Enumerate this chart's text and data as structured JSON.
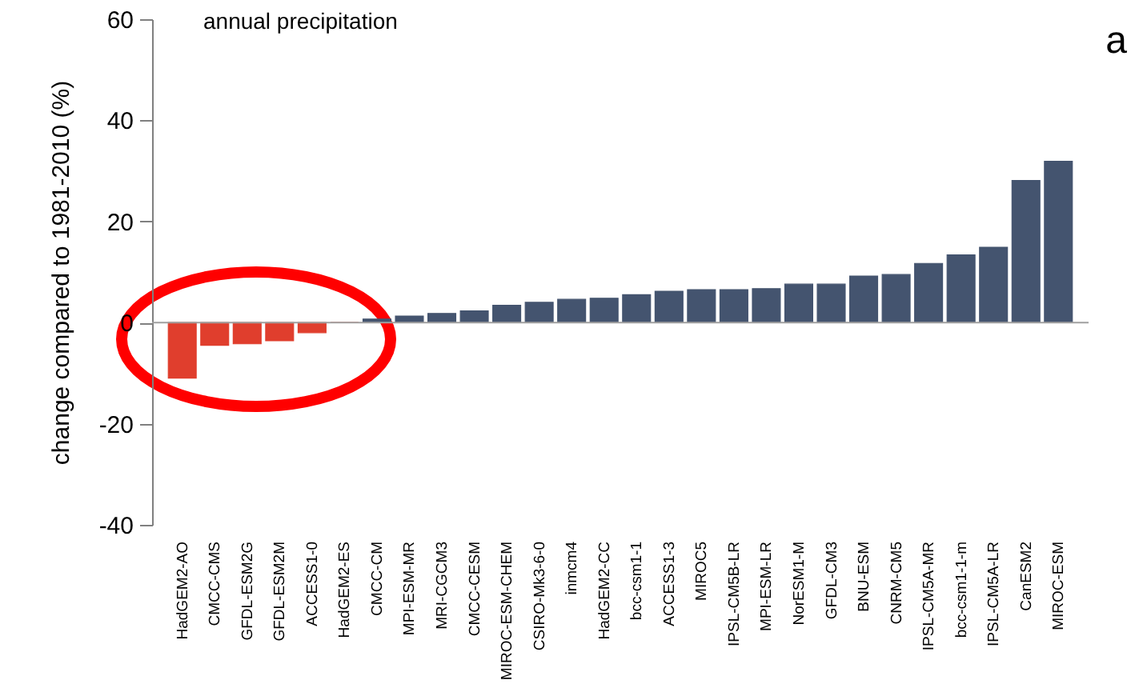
{
  "chart_data": {
    "type": "bar",
    "title": "annual precipitation",
    "ylabel": "change compared to 1981-2010 (%)",
    "annotations": [
      "a"
    ],
    "categories": [
      "HadGEM2-AO",
      "CMCC-CMS",
      "GFDL-ESM2G",
      "GFDL-ESM2M",
      "ACCESS1-0",
      "HadGEM2-ES",
      "CMCC-CM",
      "MPI-ESM-MR",
      "MRI-CGCM3",
      "CMCC-CESM",
      "MIROC-ESM-CHEM",
      "CSIRO-Mk3-6-0",
      "inmcm4",
      "HadGEM2-CC",
      "bcc-csm1-1",
      "ACCESS1-3",
      "MIROC5",
      "IPSL-CM5B-LR",
      "MPI-ESM-LR",
      "NorESM1-M",
      "GFDL-CM3",
      "BNU-ESM",
      "CNRM-CM5",
      "IPSL-CM5A-MR",
      "bcc-csm1-1-m",
      "IPSL-CM5A-LR",
      "CanESM2",
      "MIROC-ESM"
    ],
    "values": [
      -11.0,
      -4.5,
      -4.2,
      -3.6,
      -2.0,
      0,
      0.7,
      1.3,
      1.8,
      2.3,
      3.4,
      4.0,
      4.6,
      4.8,
      5.5,
      6.2,
      6.5,
      6.5,
      6.7,
      7.6,
      7.6,
      9.2,
      9.5,
      11.7,
      13.4,
      14.9,
      28.1,
      31.9
    ],
    "colors": [
      "#e03e2d",
      "#e03e2d",
      "#e03e2d",
      "#e03e2d",
      "#e03e2d",
      "#e03e2d",
      "#44546f",
      "#44546f",
      "#44546f",
      "#44546f",
      "#44546f",
      "#44546f",
      "#44546f",
      "#44546f",
      "#44546f",
      "#44546f",
      "#44546f",
      "#44546f",
      "#44546f",
      "#44546f",
      "#44546f",
      "#44546f",
      "#44546f",
      "#44546f",
      "#44546f",
      "#44546f",
      "#44546f",
      "#44546f"
    ],
    "ylim": [
      -40,
      60
    ],
    "yticks": [
      -40,
      -20,
      0,
      20,
      40,
      60
    ],
    "ref_lines": [
      {
        "axis": "y",
        "value": 0,
        "color": "#a0a0a0"
      }
    ]
  }
}
